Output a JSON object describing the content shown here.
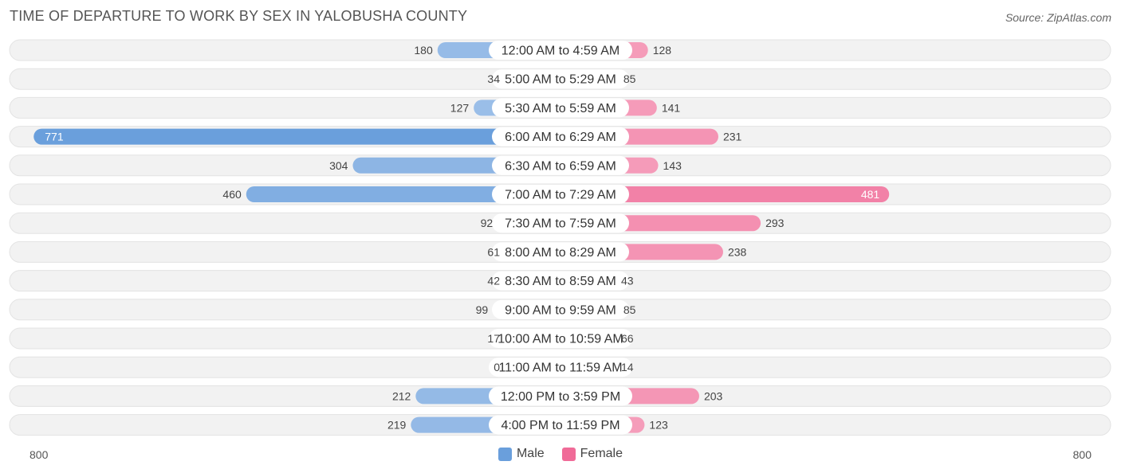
{
  "title": "TIME OF DEPARTURE TO WORK BY SEX IN YALOBUSHA COUNTY",
  "source": "Source: ZipAtlas.com",
  "colors": {
    "male": "#a4c4ea",
    "male_strong": "#6a9fdc",
    "female": "#f6a6c0",
    "female_strong": "#f06b98",
    "row_bg": "#f2f2f2",
    "row_border": "#e3e3e3"
  },
  "chart_data": {
    "type": "bar",
    "orientation": "horizontal-diverging",
    "categories": [
      "12:00 AM to 4:59 AM",
      "5:00 AM to 5:29 AM",
      "5:30 AM to 5:59 AM",
      "6:00 AM to 6:29 AM",
      "6:30 AM to 6:59 AM",
      "7:00 AM to 7:29 AM",
      "7:30 AM to 7:59 AM",
      "8:00 AM to 8:29 AM",
      "8:30 AM to 8:59 AM",
      "9:00 AM to 9:59 AM",
      "10:00 AM to 10:59 AM",
      "11:00 AM to 11:59 AM",
      "12:00 PM to 3:59 PM",
      "4:00 PM to 11:59 PM"
    ],
    "series": [
      {
        "name": "Male",
        "values": [
          180,
          34,
          127,
          771,
          304,
          460,
          92,
          61,
          42,
          99,
          17,
          0,
          212,
          219
        ]
      },
      {
        "name": "Female",
        "values": [
          128,
          85,
          141,
          231,
          143,
          481,
          293,
          238,
          43,
          85,
          66,
          14,
          203,
          123
        ]
      }
    ],
    "axis_min_label": "800",
    "axis_max_label": "800",
    "xlim": [
      -800,
      800
    ],
    "legend": "bottom-center"
  }
}
